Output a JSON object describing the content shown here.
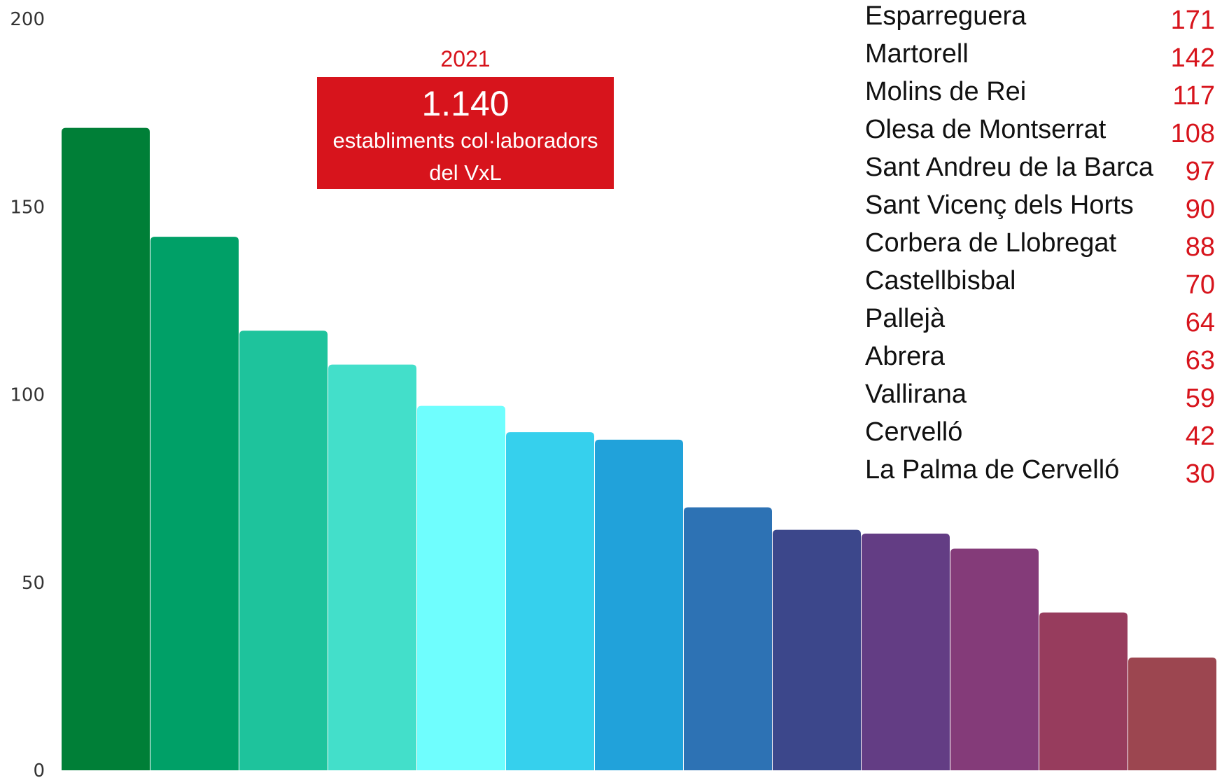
{
  "chart_data": {
    "type": "bar",
    "categories": [
      "Esparreguera",
      "Martorell",
      "Molins de Rei",
      "Olesa de Montserrat",
      "Sant Andreu de la Barca",
      "Sant Vicenç dels Horts",
      "Corbera de Llobregat",
      "Castellbisbal",
      "Pallejà",
      "Abrera",
      "Vallirana",
      "Cervelló",
      "La Palma de Cervelló"
    ],
    "values": [
      171,
      142,
      117,
      108,
      97,
      90,
      88,
      70,
      64,
      63,
      59,
      42,
      30
    ],
    "value_labels": [
      "171",
      "142",
      "117",
      "108",
      "97",
      "90",
      "88",
      "70",
      "64",
      "63",
      "59",
      "42",
      "30"
    ],
    "colors": [
      "#007f37",
      "#00a067",
      "#1ec39c",
      "#43dfca",
      "#6ffefe",
      "#36d0ed",
      "#21a2da",
      "#2d72b4",
      "#3c478b",
      "#633d84",
      "#843b79",
      "#973c5d",
      "#9c4650"
    ],
    "yticks": [
      0,
      50,
      100,
      150,
      200
    ],
    "ytick_labels": [
      "0",
      "50",
      "100",
      "150",
      "200"
    ],
    "ylim": [
      0,
      200
    ],
    "grid": false,
    "legend_position": "top-right",
    "title": "",
    "xlabel": "",
    "ylabel": ""
  },
  "callout": {
    "year": "2021",
    "total": "1.140",
    "line1": "establiments col·laboradors",
    "line2": "del VxL"
  },
  "colors": {
    "accent": "#d7141c"
  }
}
